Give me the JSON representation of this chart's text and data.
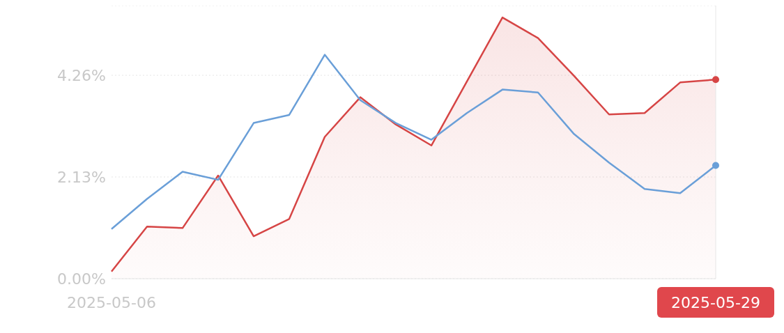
{
  "chart_data": {
    "type": "line",
    "categories": [
      "2025-05-06",
      null,
      null,
      null,
      null,
      null,
      null,
      null,
      null,
      null,
      null,
      null,
      null,
      null,
      null,
      null,
      null,
      "2025-05-29"
    ],
    "series": [
      {
        "type": "line",
        "color": "#6a9fd8",
        "values": [
          1.04,
          1.67,
          2.24,
          2.07,
          3.26,
          3.43,
          4.69,
          3.74,
          3.26,
          2.91,
          3.47,
          3.96,
          3.9,
          3.04,
          2.43,
          1.88,
          1.79,
          2.37
        ]
      },
      {
        "type": "area",
        "color": "#d64545",
        "values": [
          0.15,
          1.09,
          1.06,
          2.16,
          0.89,
          1.25,
          2.97,
          3.8,
          3.23,
          2.79,
          4.13,
          5.47,
          5.04,
          4.26,
          3.44,
          3.47,
          4.11,
          4.17
        ]
      }
    ],
    "ylim": [
      0,
      5.72
    ],
    "yticks": [
      {
        "value": 0,
        "label": "0.00%"
      },
      {
        "value": 2.13,
        "label": "2.13%"
      },
      {
        "value": 4.26,
        "label": "4.26%"
      }
    ],
    "grid": "y",
    "legend": false
  }
}
